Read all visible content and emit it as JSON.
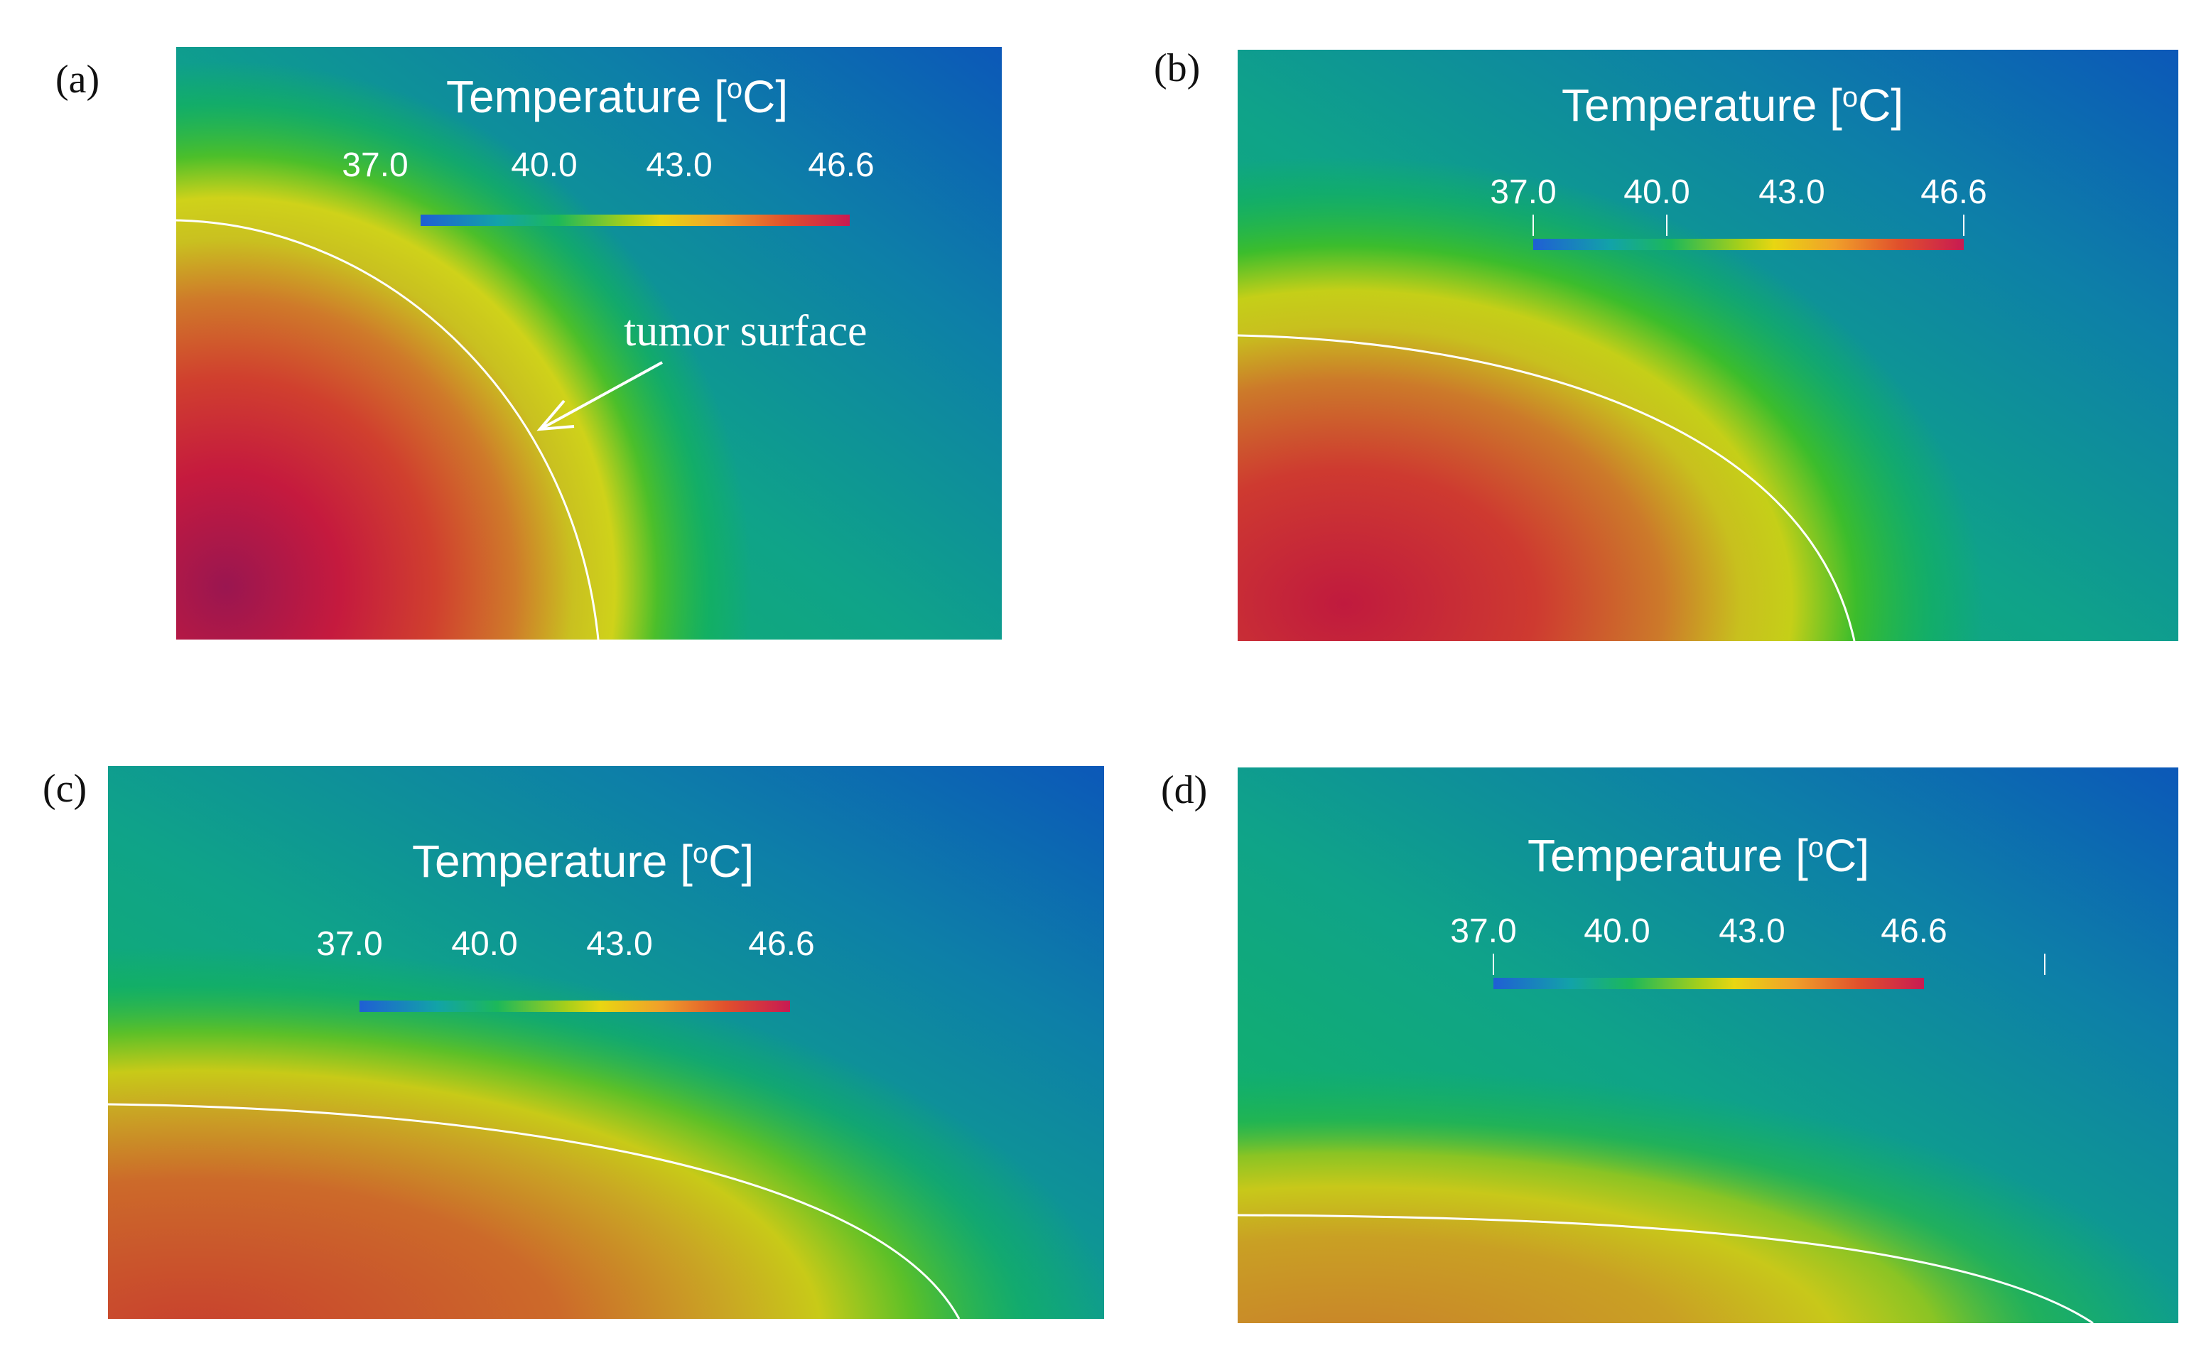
{
  "colors": {
    "colormap": [
      "#1f5fd4",
      "#12a3a8",
      "#1cb85a",
      "#a6cf1a",
      "#e8d612",
      "#f0a02a",
      "#e0502c",
      "#c81a52"
    ]
  },
  "colorbar": {
    "title_prefix": "Temperature [",
    "title_superscript": "o",
    "title_suffix": "C]",
    "ticks": [
      "37.0",
      "40.0",
      "43.0",
      "46.6"
    ]
  },
  "annotation": {
    "text": "tumor surface"
  },
  "panels": [
    {
      "label": "(a)"
    },
    {
      "label": "(b)"
    },
    {
      "label": "(c)"
    },
    {
      "label": "(d)"
    }
  ]
}
